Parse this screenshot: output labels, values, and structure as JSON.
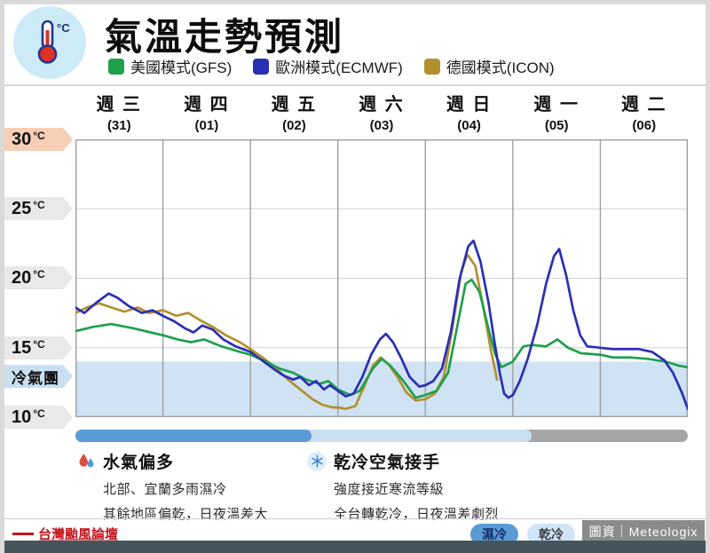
{
  "header": {
    "title": "氣溫走勢預測",
    "icon_unit": "°C",
    "legend": [
      {
        "label": "美國模式(GFS)",
        "color": "#1fa04d"
      },
      {
        "label": "歐洲模式(ECMWF)",
        "color": "#2a2fb3"
      },
      {
        "label": "德國模式(ICON)",
        "color": "#b3902e"
      }
    ]
  },
  "chart_data": {
    "type": "line",
    "title": "氣溫走勢預測",
    "x_axis": {
      "range_days": 7,
      "days": [
        {
          "name": "週 三",
          "date": "(31)"
        },
        {
          "name": "週 四",
          "date": "(01)"
        },
        {
          "name": "週 五",
          "date": "(02)"
        },
        {
          "name": "週 六",
          "date": "(03)"
        },
        {
          "name": "週 日",
          "date": "(04)"
        },
        {
          "name": "週 一",
          "date": "(05)"
        },
        {
          "name": "週 二",
          "date": "(06)"
        }
      ]
    },
    "y_axis": {
      "ylim": [
        10,
        30
      ],
      "gridlines": [
        15,
        20,
        25
      ],
      "labels": [
        {
          "num": "30",
          "unit": "°C"
        },
        {
          "num": "25",
          "unit": "°C"
        },
        {
          "num": "20",
          "unit": "°C"
        },
        {
          "num": "15",
          "unit": "°C"
        },
        {
          "num": "冷氣團",
          "unit": ""
        },
        {
          "num": "10",
          "unit": "°C"
        }
      ]
    },
    "cold_band": {
      "top_temp": 14,
      "color": "#cfe3f4",
      "label": "冷氣團"
    },
    "series": [
      {
        "name": "德國模式(ICON)",
        "color": "#b3902e",
        "points": [
          [
            0,
            17.5
          ],
          [
            0.13,
            17.9
          ],
          [
            0.27,
            18.2
          ],
          [
            0.41,
            17.9
          ],
          [
            0.56,
            17.6
          ],
          [
            0.71,
            17.9
          ],
          [
            0.84,
            17.5
          ],
          [
            1,
            17.7
          ],
          [
            1.15,
            17.3
          ],
          [
            1.29,
            17.5
          ],
          [
            1.42,
            17
          ],
          [
            1.57,
            16.5
          ],
          [
            1.72,
            15.9
          ],
          [
            1.88,
            15.4
          ],
          [
            2,
            14.9
          ],
          [
            2.14,
            14.3
          ],
          [
            2.28,
            13.6
          ],
          [
            2.43,
            12.7
          ],
          [
            2.59,
            11.9
          ],
          [
            2.71,
            11.3
          ],
          [
            2.82,
            10.9
          ],
          [
            2.94,
            10.7
          ],
          [
            3,
            10.7
          ],
          [
            3.09,
            10.6
          ],
          [
            3.2,
            10.8
          ],
          [
            3.3,
            12.2
          ],
          [
            3.4,
            13.7
          ],
          [
            3.49,
            14.3
          ],
          [
            3.58,
            13.8
          ],
          [
            3.68,
            12.9
          ],
          [
            3.78,
            11.8
          ],
          [
            3.89,
            11.2
          ],
          [
            4,
            11.3
          ],
          [
            4.11,
            11.7
          ],
          [
            4.21,
            12.9
          ],
          [
            4.31,
            16.4
          ],
          [
            4.41,
            20.5
          ],
          [
            4.48,
            21.7
          ],
          [
            4.57,
            20.9
          ],
          [
            4.66,
            18
          ],
          [
            4.75,
            14.8
          ],
          [
            4.82,
            12.7
          ]
        ]
      },
      {
        "name": "美國模式(GFS)",
        "color": "#1fa04d",
        "points": [
          [
            0,
            16.2
          ],
          [
            0.2,
            16.5
          ],
          [
            0.41,
            16.7
          ],
          [
            0.66,
            16.4
          ],
          [
            0.86,
            16.1
          ],
          [
            1,
            15.9
          ],
          [
            1.17,
            15.6
          ],
          [
            1.32,
            15.4
          ],
          [
            1.47,
            15.6
          ],
          [
            1.67,
            15.1
          ],
          [
            1.88,
            14.7
          ],
          [
            2,
            14.5
          ],
          [
            2.18,
            14
          ],
          [
            2.33,
            13.5
          ],
          [
            2.49,
            13.2
          ],
          [
            2.64,
            12.7
          ],
          [
            2.79,
            12.4
          ],
          [
            2.89,
            12.6
          ],
          [
            3,
            12
          ],
          [
            3.14,
            11.6
          ],
          [
            3.25,
            11.9
          ],
          [
            3.4,
            13.5
          ],
          [
            3.5,
            14.2
          ],
          [
            3.6,
            13.7
          ],
          [
            3.75,
            12.6
          ],
          [
            3.89,
            11.4
          ],
          [
            4,
            11.6
          ],
          [
            4.13,
            11.9
          ],
          [
            4.26,
            13.2
          ],
          [
            4.36,
            16.4
          ],
          [
            4.46,
            19.6
          ],
          [
            4.53,
            19.9
          ],
          [
            4.62,
            19
          ],
          [
            4.72,
            16.4
          ],
          [
            4.8,
            14.5
          ],
          [
            4.87,
            13.6
          ],
          [
            5,
            14
          ],
          [
            5.12,
            15.1
          ],
          [
            5.22,
            15.2
          ],
          [
            5.38,
            15.1
          ],
          [
            5.51,
            15.6
          ],
          [
            5.63,
            15
          ],
          [
            5.78,
            14.6
          ],
          [
            6,
            14.5
          ],
          [
            6.14,
            14.3
          ],
          [
            6.34,
            14.3
          ],
          [
            6.54,
            14.2
          ],
          [
            6.75,
            14
          ],
          [
            6.9,
            13.7
          ],
          [
            7,
            13.6
          ]
        ]
      },
      {
        "name": "歐洲模式(ECMWF)",
        "color": "#2a2fb3",
        "points": [
          [
            0,
            17.9
          ],
          [
            0.1,
            17.5
          ],
          [
            0.25,
            18.3
          ],
          [
            0.38,
            18.9
          ],
          [
            0.48,
            18.6
          ],
          [
            0.61,
            18
          ],
          [
            0.76,
            17.5
          ],
          [
            0.88,
            17.7
          ],
          [
            1,
            17.3
          ],
          [
            1.13,
            16.9
          ],
          [
            1.25,
            16.4
          ],
          [
            1.35,
            16.1
          ],
          [
            1.45,
            16.6
          ],
          [
            1.57,
            16.3
          ],
          [
            1.69,
            15.6
          ],
          [
            1.83,
            15.1
          ],
          [
            2,
            14.7
          ],
          [
            2.13,
            14.1
          ],
          [
            2.26,
            13.5
          ],
          [
            2.38,
            13
          ],
          [
            2.49,
            12.7
          ],
          [
            2.57,
            12.9
          ],
          [
            2.67,
            12.3
          ],
          [
            2.75,
            12.6
          ],
          [
            2.84,
            12
          ],
          [
            2.91,
            12.3
          ],
          [
            3,
            11.9
          ],
          [
            3.09,
            11.5
          ],
          [
            3.18,
            11.7
          ],
          [
            3.28,
            12.9
          ],
          [
            3.38,
            14.5
          ],
          [
            3.48,
            15.6
          ],
          [
            3.55,
            16
          ],
          [
            3.63,
            15.4
          ],
          [
            3.72,
            14.3
          ],
          [
            3.82,
            12.9
          ],
          [
            3.93,
            12.2
          ],
          [
            4,
            12.3
          ],
          [
            4.09,
            12.6
          ],
          [
            4.19,
            13.5
          ],
          [
            4.29,
            16.1
          ],
          [
            4.39,
            19.9
          ],
          [
            4.49,
            22.3
          ],
          [
            4.55,
            22.7
          ],
          [
            4.63,
            21.2
          ],
          [
            4.72,
            18.3
          ],
          [
            4.79,
            15.4
          ],
          [
            4.85,
            13.2
          ],
          [
            4.9,
            11.7
          ],
          [
            4.95,
            11.4
          ],
          [
            5,
            11.6
          ],
          [
            5.08,
            12.6
          ],
          [
            5.17,
            14.2
          ],
          [
            5.28,
            16.7
          ],
          [
            5.38,
            19.6
          ],
          [
            5.47,
            21.6
          ],
          [
            5.53,
            22.1
          ],
          [
            5.61,
            20.2
          ],
          [
            5.69,
            17.7
          ],
          [
            5.77,
            15.9
          ],
          [
            5.85,
            15.1
          ],
          [
            6,
            15
          ],
          [
            6.14,
            14.9
          ],
          [
            6.29,
            14.9
          ],
          [
            6.44,
            14.9
          ],
          [
            6.59,
            14.7
          ],
          [
            6.73,
            14.1
          ],
          [
            6.83,
            13.2
          ],
          [
            6.93,
            11.8
          ],
          [
            7,
            10.6
          ]
        ]
      }
    ]
  },
  "condition_bar": {
    "segments": [
      {
        "label": "濕冷",
        "frac": 0.385,
        "color": "#5b9bd5"
      },
      {
        "label": "乾冷",
        "frac": 0.37,
        "color": "#c9e0f3"
      },
      {
        "label": "",
        "frac": 0.245,
        "color": "#a6a6a6"
      }
    ]
  },
  "annotations": [
    {
      "title": "水氣偏多",
      "lines": [
        "北部、宜蘭多雨濕冷",
        "其餘地區偏乾，日夜溫差大"
      ]
    },
    {
      "title": "乾冷空氣接手",
      "lines": [
        "強度接近寒流等級",
        "全台轉乾冷，日夜溫差劇烈"
      ]
    }
  ],
  "footer": {
    "logo_text": "台灣颱風論壇",
    "legend": [
      {
        "label": "濕冷",
        "color": "#5b9bd5"
      },
      {
        "label": "乾冷",
        "color": "#cfe4f5"
      }
    ],
    "source": "圖資｜Meteologix"
  }
}
